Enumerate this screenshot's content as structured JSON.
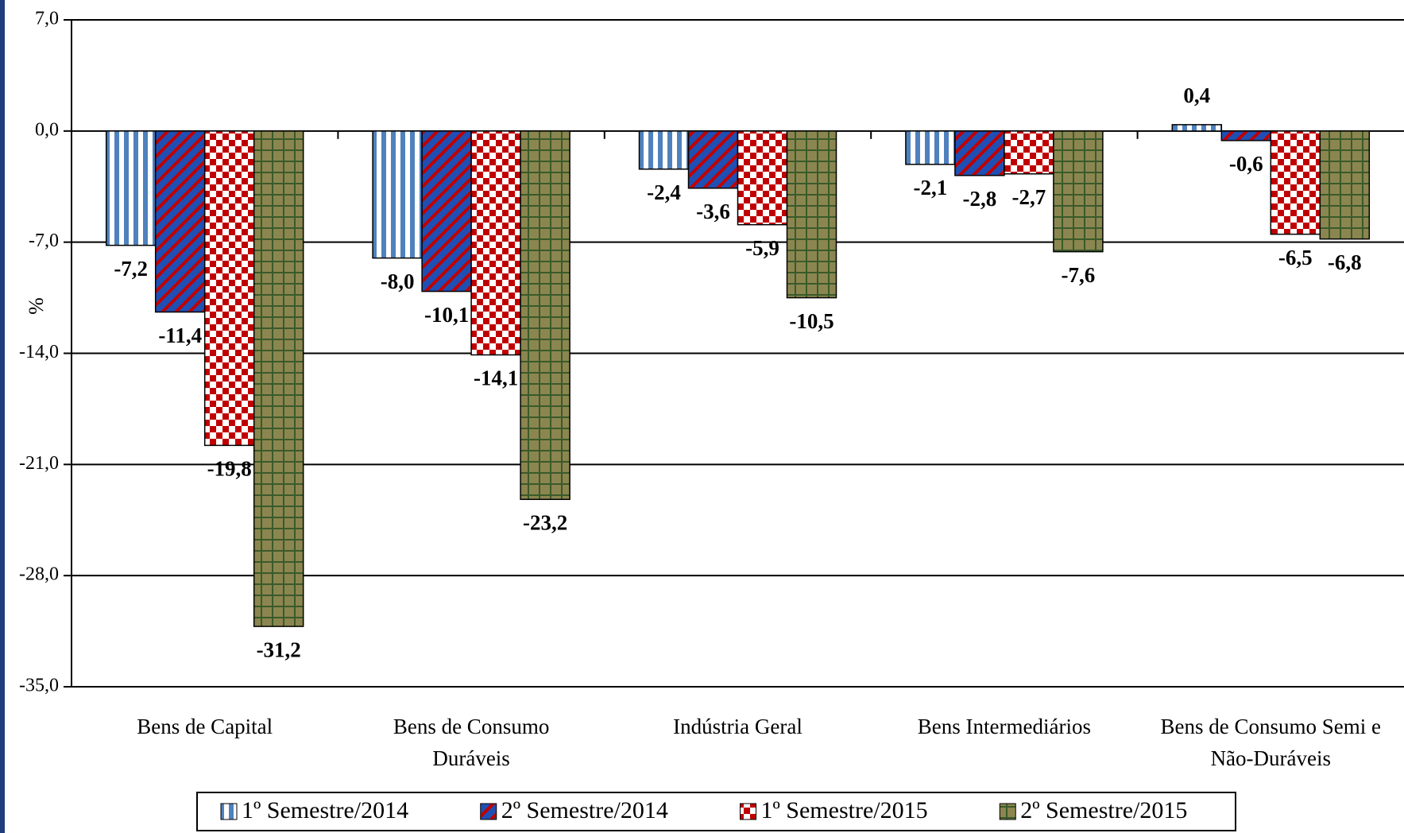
{
  "chart_data": {
    "type": "bar",
    "y_label": "%",
    "categories": [
      "Bens de Capital",
      "Bens de Consumo Duráveis",
      "Indústria Geral",
      "Bens Intermediários",
      "Bens de Consumo Semi e Não-Duráveis"
    ],
    "series": [
      {
        "name": "1º Semestre/2014",
        "color": "#4f81bd",
        "pattern": "vertical",
        "values": [
          -7.2,
          -8.0,
          -2.4,
          -2.1,
          0.4
        ],
        "value_labels": [
          "-7,2",
          "-8,0",
          "-2,4",
          "-2,1",
          "0,4"
        ]
      },
      {
        "name": "2º Semestre/2014",
        "color": "#1f4fb4",
        "pattern": "diagonal",
        "values": [
          -11.4,
          -10.1,
          -3.6,
          -2.8,
          -0.6
        ],
        "value_labels": [
          "-11,4",
          "-10,1",
          "-3,6",
          "-2,8",
          "-0,6"
        ]
      },
      {
        "name": "1º Semestre/2015",
        "color": "#c00000",
        "pattern": "checker",
        "values": [
          -19.8,
          -14.1,
          -5.9,
          -2.7,
          -6.5
        ],
        "value_labels": [
          "-19,8",
          "-14,1",
          "-5,9",
          "-2,7",
          "-6,5"
        ]
      },
      {
        "name": "2º Semestre/2015",
        "color": "#8b8650",
        "pattern": "grid",
        "values": [
          -31.2,
          -23.2,
          -10.5,
          -7.6,
          -6.8
        ],
        "value_labels": [
          "-31,2",
          "-23,2",
          "-10,5",
          "-7,6",
          "-6,8"
        ]
      }
    ],
    "ylim": [
      -35,
      7
    ],
    "yticks": [
      {
        "value": 7,
        "label": "7,0"
      },
      {
        "value": 0,
        "label": "0,0"
      },
      {
        "value": -7,
        "label": "-7,0"
      },
      {
        "value": -14,
        "label": "-14,0"
      },
      {
        "value": -21,
        "label": "-21,0"
      },
      {
        "value": -28,
        "label": "-28,0"
      },
      {
        "value": -35,
        "label": "-35,0"
      }
    ],
    "grid": true,
    "legend": "bottom"
  }
}
